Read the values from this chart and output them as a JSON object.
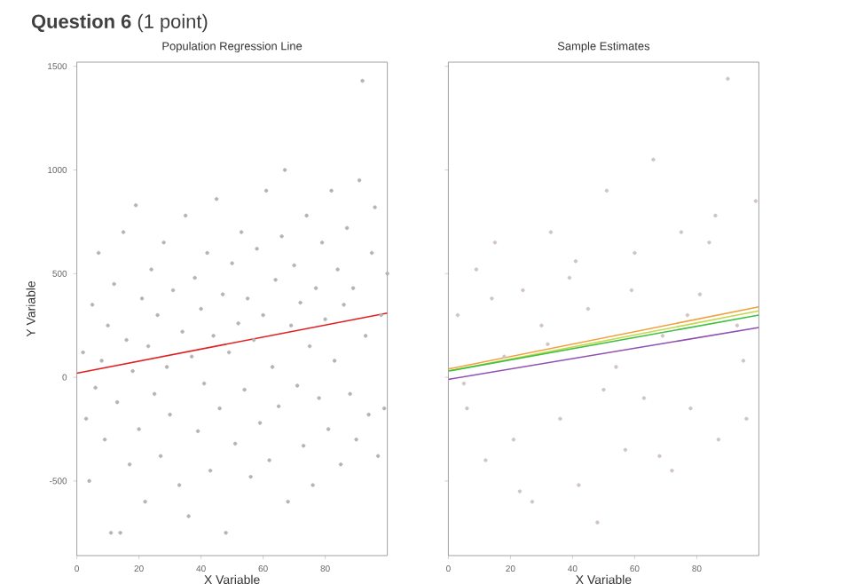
{
  "chart_data": [
    {
      "type": "scatter",
      "title": "Population Regression Line",
      "xlabel": "X Variable",
      "ylabel": "Y Variable",
      "annotations": [
        "**Question 6** (1 point)"
      ],
      "xlim": [
        0,
        100
      ],
      "ylim": [
        -860,
        1520
      ],
      "xticks": [
        0,
        20,
        40,
        60,
        80
      ],
      "yticks": [
        -500,
        0,
        500,
        1000,
        1500
      ],
      "series": [
        {
          "marker": "circle",
          "color": "#b4b4b4",
          "x": [
            2,
            3,
            4,
            5,
            6,
            7,
            8,
            9,
            10,
            11,
            12,
            13,
            14,
            15,
            16,
            17,
            18,
            19,
            20,
            21,
            22,
            23,
            24,
            25,
            26,
            27,
            28,
            29,
            30,
            31,
            33,
            34,
            35,
            36,
            37,
            38,
            39,
            40,
            41,
            42,
            43,
            44,
            45,
            46,
            47,
            48,
            49,
            50,
            51,
            52,
            53,
            54,
            55,
            56,
            57,
            58,
            59,
            60,
            61,
            62,
            63,
            64,
            65,
            66,
            67,
            68,
            69,
            70,
            71,
            72,
            73,
            74,
            75,
            76,
            77,
            78,
            79,
            80,
            81,
            82,
            83,
            84,
            85,
            86,
            87,
            88,
            89,
            90,
            91,
            92,
            93,
            94,
            95,
            96,
            97,
            98,
            99,
            100
          ],
          "values": [
            120,
            -200,
            -500,
            350,
            -50,
            600,
            80,
            -300,
            250,
            -750,
            450,
            -120,
            -750,
            700,
            180,
            -420,
            30,
            830,
            -250,
            380,
            -600,
            150,
            520,
            -80,
            300,
            -380,
            650,
            50,
            -180,
            420,
            -520,
            220,
            780,
            -670,
            100,
            480,
            -260,
            330,
            -30,
            600,
            -450,
            200,
            860,
            -150,
            400,
            -750,
            120,
            550,
            -320,
            260,
            700,
            -60,
            380,
            -480,
            180,
            620,
            -220,
            300,
            900,
            -400,
            50,
            470,
            -140,
            680,
            1000,
            -600,
            250,
            540,
            -40,
            360,
            -330,
            780,
            150,
            -520,
            430,
            -100,
            650,
            280,
            -250,
            900,
            80,
            520,
            -420,
            350,
            720,
            -80,
            430,
            -300,
            950,
            1430,
            200,
            -180,
            600,
            820,
            -380,
            300,
            -150,
            500
          ]
        },
        {
          "type": "line",
          "marker": "none",
          "color": "#e02020",
          "x": [
            0,
            100
          ],
          "values": [
            20,
            310
          ]
        }
      ]
    },
    {
      "type": "scatter",
      "title": "Sample Estimates",
      "xlabel": "X Variable",
      "xlim": [
        0,
        100
      ],
      "ylim": [
        -860,
        1520
      ],
      "xticks": [
        0,
        20,
        40,
        60,
        80
      ],
      "yticks": [
        -500,
        0,
        500,
        1000,
        1500
      ],
      "tick_labels": "x",
      "series": [
        {
          "marker": "circle",
          "color": "#d0c4c4",
          "x": [
            3,
            6,
            9,
            12,
            15,
            18,
            21,
            24,
            27,
            30,
            33,
            36,
            39,
            42,
            45,
            48,
            51,
            54,
            57,
            60,
            63,
            66,
            69,
            72,
            75,
            78,
            81,
            84,
            87,
            90,
            93,
            96,
            99,
            5,
            14,
            23,
            32,
            41,
            50,
            59,
            68,
            77,
            86,
            95
          ],
          "values": [
            300,
            -150,
            520,
            -400,
            650,
            100,
            -300,
            420,
            -600,
            250,
            700,
            -200,
            480,
            -520,
            330,
            -700,
            900,
            50,
            -350,
            600,
            -100,
            1050,
            200,
            -450,
            700,
            -150,
            400,
            650,
            -300,
            1440,
            250,
            -200,
            850,
            -30,
            380,
            -550,
            160,
            560,
            -60,
            420,
            -380,
            300,
            780,
            80
          ]
        },
        {
          "type": "line",
          "marker": "none",
          "color": "#f0a040",
          "x": [
            0,
            100
          ],
          "values": [
            40,
            340
          ]
        },
        {
          "type": "line",
          "marker": "none",
          "color": "#c4d84c",
          "x": [
            0,
            100
          ],
          "values": [
            30,
            320
          ]
        },
        {
          "type": "line",
          "marker": "none",
          "color": "#40c040",
          "x": [
            0,
            100
          ],
          "values": [
            30,
            300
          ]
        },
        {
          "type": "line",
          "marker": "none",
          "color": "#9050b0",
          "x": [
            0,
            100
          ],
          "values": [
            -10,
            240
          ]
        }
      ]
    }
  ]
}
